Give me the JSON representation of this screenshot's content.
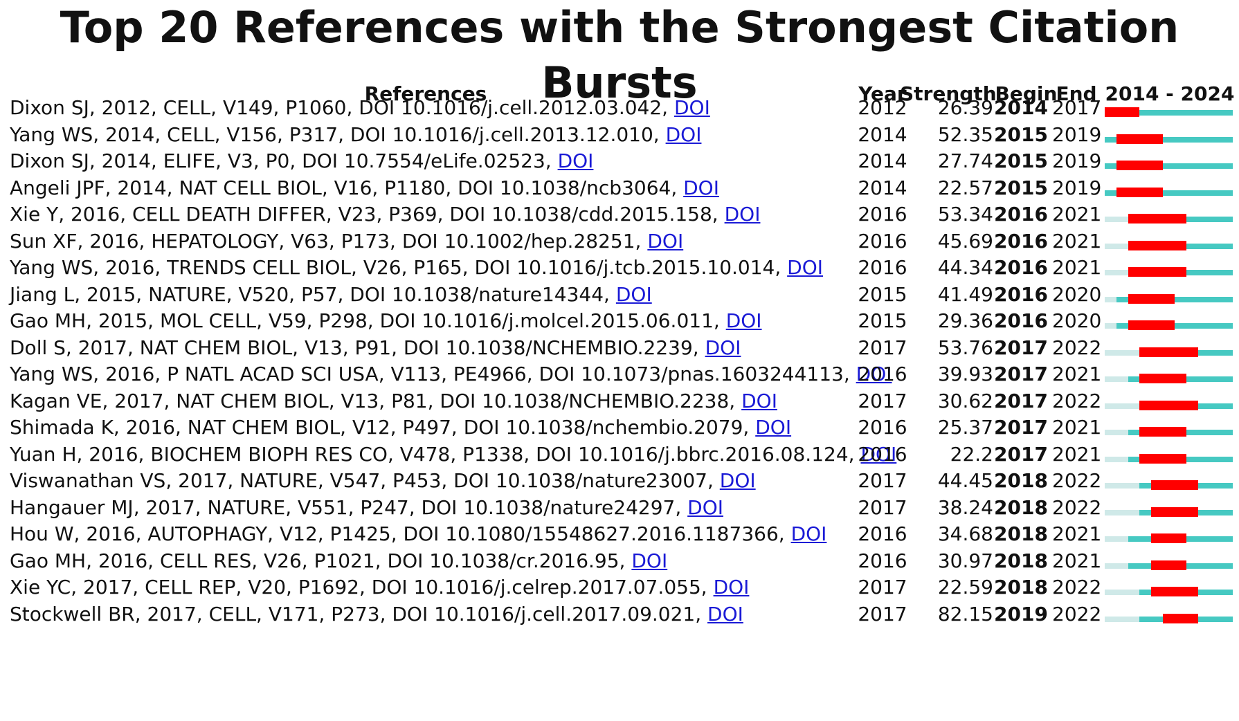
{
  "title": "Top 20 References with the Strongest Citation Bursts",
  "headers": {
    "references": "References",
    "year": "Year",
    "strength": "Strength",
    "begin": "Begin",
    "end": "End",
    "range": "2014 - 2024"
  },
  "colors": {
    "burst": "#ff0000",
    "active": "#46c9c2",
    "pre_publication": "#cfe9e8",
    "link": "#1a1ad6"
  },
  "chart_data": {
    "type": "table",
    "timeline_start": 2014,
    "timeline_end": 2024,
    "columns": [
      "References",
      "Year",
      "Strength",
      "Begin",
      "End",
      "2014 - 2024"
    ],
    "rows": [
      {
        "ref": "Dixon SJ, 2012, CELL, V149, P1060, DOI 10.1016/j.cell.2012.03.042, ",
        "doi": "DOI",
        "year": "2012",
        "strength": "26.39",
        "begin": "2014",
        "end": "2017"
      },
      {
        "ref": "Yang WS, 2014, CELL, V156, P317, DOI 10.1016/j.cell.2013.12.010, ",
        "doi": "DOI",
        "year": "2014",
        "strength": "52.35",
        "begin": "2015",
        "end": "2019"
      },
      {
        "ref": "Dixon SJ, 2014, ELIFE, V3, P0, DOI 10.7554/eLife.02523, ",
        "doi": "DOI",
        "year": "2014",
        "strength": "27.74",
        "begin": "2015",
        "end": "2019"
      },
      {
        "ref": "Angeli JPF, 2014, NAT CELL BIOL, V16, P1180, DOI 10.1038/ncb3064, ",
        "doi": "DOI",
        "year": "2014",
        "strength": "22.57",
        "begin": "2015",
        "end": "2019"
      },
      {
        "ref": "Xie Y, 2016, CELL DEATH DIFFER, V23, P369, DOI 10.1038/cdd.2015.158, ",
        "doi": "DOI",
        "year": "2016",
        "strength": "53.34",
        "begin": "2016",
        "end": "2021"
      },
      {
        "ref": "Sun XF, 2016, HEPATOLOGY, V63, P173, DOI 10.1002/hep.28251, ",
        "doi": "DOI",
        "year": "2016",
        "strength": "45.69",
        "begin": "2016",
        "end": "2021"
      },
      {
        "ref": "Yang WS, 2016, TRENDS CELL BIOL, V26, P165, DOI 10.1016/j.tcb.2015.10.014, ",
        "doi": "DOI",
        "year": "2016",
        "strength": "44.34",
        "begin": "2016",
        "end": "2021"
      },
      {
        "ref": "Jiang L, 2015, NATURE, V520, P57, DOI 10.1038/nature14344, ",
        "doi": "DOI",
        "year": "2015",
        "strength": "41.49",
        "begin": "2016",
        "end": "2020"
      },
      {
        "ref": "Gao MH, 2015, MOL CELL, V59, P298, DOI 10.1016/j.molcel.2015.06.011, ",
        "doi": "DOI",
        "year": "2015",
        "strength": "29.36",
        "begin": "2016",
        "end": "2020"
      },
      {
        "ref": "Doll S, 2017, NAT CHEM BIOL, V13, P91, DOI 10.1038/NCHEMBIO.2239, ",
        "doi": "DOI",
        "year": "2017",
        "strength": "53.76",
        "begin": "2017",
        "end": "2022"
      },
      {
        "ref": "Yang WS, 2016, P NATL ACAD SCI USA, V113, PE4966, DOI 10.1073/pnas.1603244113, ",
        "doi": "DOI",
        "year": "2016",
        "strength": "39.93",
        "begin": "2017",
        "end": "2021"
      },
      {
        "ref": "Kagan VE, 2017, NAT CHEM BIOL, V13, P81, DOI 10.1038/NCHEMBIO.2238, ",
        "doi": "DOI",
        "year": "2017",
        "strength": "30.62",
        "begin": "2017",
        "end": "2022"
      },
      {
        "ref": "Shimada K, 2016, NAT CHEM BIOL, V12, P497, DOI 10.1038/nchembio.2079, ",
        "doi": "DOI",
        "year": "2016",
        "strength": "25.37",
        "begin": "2017",
        "end": "2021"
      },
      {
        "ref": "Yuan H, 2016, BIOCHEM BIOPH RES CO, V478, P1338, DOI 10.1016/j.bbrc.2016.08.124, ",
        "doi": "DOI",
        "year": "2016",
        "strength": "22.2",
        "begin": "2017",
        "end": "2021"
      },
      {
        "ref": "Viswanathan VS, 2017, NATURE, V547, P453, DOI 10.1038/nature23007, ",
        "doi": "DOI",
        "year": "2017",
        "strength": "44.45",
        "begin": "2018",
        "end": "2022"
      },
      {
        "ref": "Hangauer MJ, 2017, NATURE, V551, P247, DOI 10.1038/nature24297, ",
        "doi": "DOI",
        "year": "2017",
        "strength": "38.24",
        "begin": "2018",
        "end": "2022"
      },
      {
        "ref": "Hou W, 2016, AUTOPHAGY, V12, P1425, DOI 10.1080/15548627.2016.1187366, ",
        "doi": "DOI",
        "year": "2016",
        "strength": "34.68",
        "begin": "2018",
        "end": "2021"
      },
      {
        "ref": "Gao MH, 2016, CELL RES, V26, P1021, DOI 10.1038/cr.2016.95, ",
        "doi": "DOI",
        "year": "2016",
        "strength": "30.97",
        "begin": "2018",
        "end": "2021"
      },
      {
        "ref": "Xie YC, 2017, CELL REP, V20, P1692, DOI 10.1016/j.celrep.2017.07.055, ",
        "doi": "DOI",
        "year": "2017",
        "strength": "22.59",
        "begin": "2018",
        "end": "2022"
      },
      {
        "ref": "Stockwell BR, 2017, CELL, V171, P273, DOI 10.1016/j.cell.2017.09.021, ",
        "doi": "DOI",
        "year": "2017",
        "strength": "82.15",
        "begin": "2019",
        "end": "2022"
      }
    ]
  }
}
